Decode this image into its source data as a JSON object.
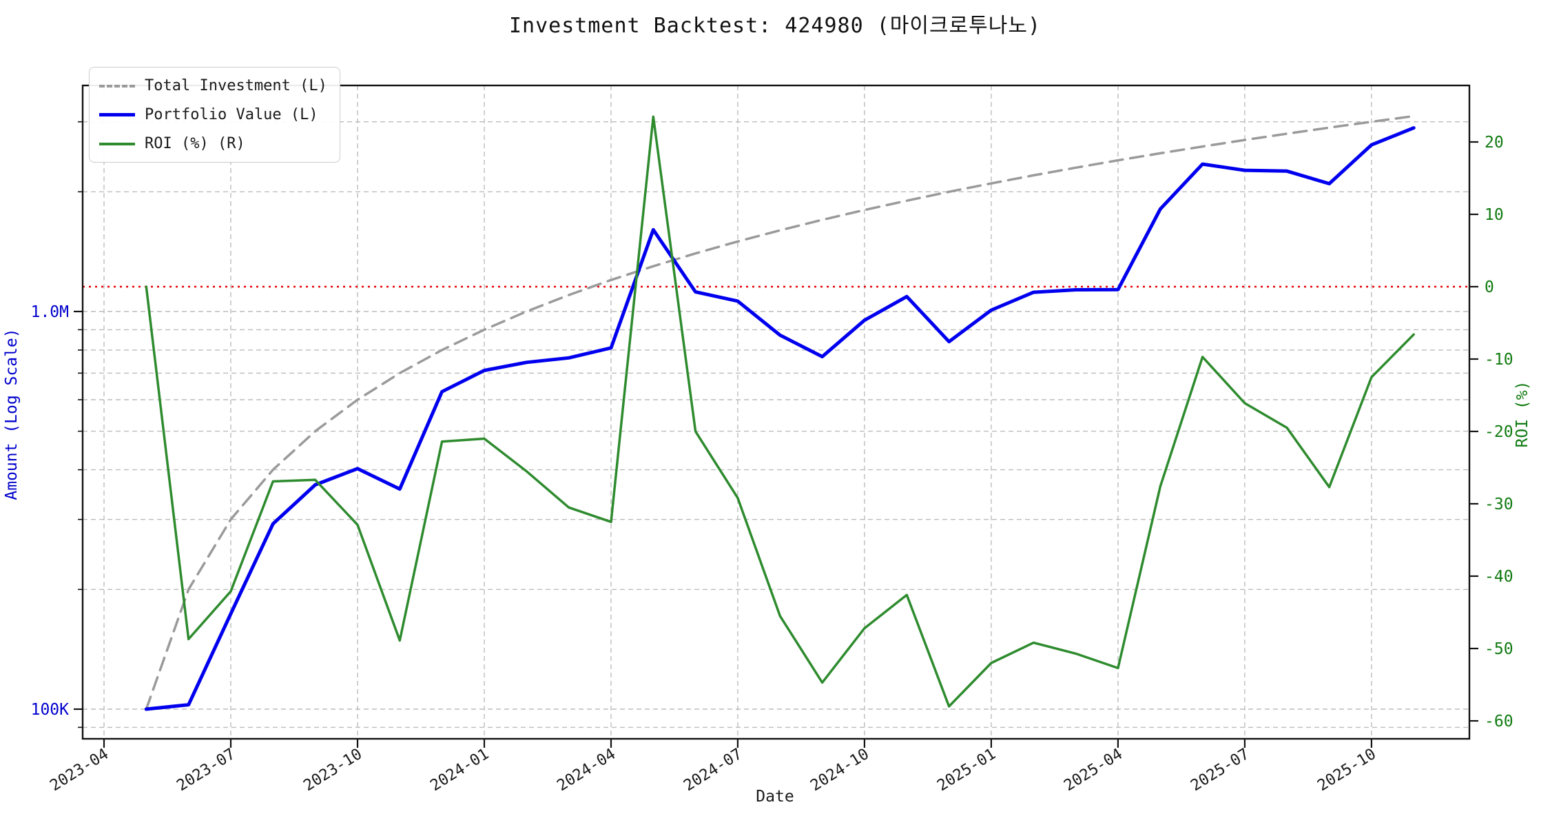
{
  "title": "Investment Backtest: 424980 (마이크로투나노)",
  "legend": [
    {
      "label": "Total Investment (L)",
      "color": "#9a9a9a",
      "style": "dashed"
    },
    {
      "label": "Portfolio Value (L)",
      "color": "#0000ee",
      "style": "solid"
    },
    {
      "label": "ROI (%) (R)",
      "color": "#2e8b2e",
      "style": "solid"
    }
  ],
  "axes": {
    "x_label": "Date",
    "left_label": "Amount (Log Scale)",
    "right_label": "ROI (%)",
    "x_ticks": [
      "2023-04",
      "2023-07",
      "2023-10",
      "2024-01",
      "2024-04",
      "2024-07",
      "2024-10",
      "2025-01",
      "2025-04",
      "2025-07",
      "2025-10"
    ],
    "left_ticks": [
      {
        "value": 100000,
        "label": "100K"
      },
      {
        "value": 1000000,
        "label": "1.0M"
      }
    ],
    "left_minor_grid": [
      90000,
      200000,
      300000,
      400000,
      500000,
      600000,
      700000,
      800000,
      900000,
      2000000,
      3000000
    ],
    "right_ticks": [
      20,
      10,
      0,
      -10,
      -20,
      -30,
      -40,
      -50,
      -60
    ],
    "left_color": "#0000cc",
    "right_color": "#107a10",
    "tick_color": "#1a1a1a"
  },
  "zero_line": {
    "value": 0,
    "color": "#e60000",
    "style": "dotted"
  },
  "chart_data": {
    "type": "line",
    "x": [
      "2023-05",
      "2023-06",
      "2023-07",
      "2023-08",
      "2023-09",
      "2023-10",
      "2023-11",
      "2023-12",
      "2024-01",
      "2024-02",
      "2024-03",
      "2024-04",
      "2024-05",
      "2024-06",
      "2024-07",
      "2024-08",
      "2024-09",
      "2024-10",
      "2024-11",
      "2024-12",
      "2025-01",
      "2025-02",
      "2025-03",
      "2025-04",
      "2025-05",
      "2025-06",
      "2025-07",
      "2025-08",
      "2025-09",
      "2025-10",
      "2025-11"
    ],
    "series": [
      {
        "id": "total-investment",
        "name": "Total Investment (L)",
        "axis": "left",
        "color": "#9a9a9a",
        "dashed": true,
        "width": 3.5,
        "values": [
          100000,
          200000,
          300000,
          400000,
          500000,
          600000,
          700000,
          800000,
          900000,
          1000000,
          1100000,
          1200000,
          1300000,
          1400000,
          1500000,
          1600000,
          1700000,
          1800000,
          1900000,
          2000000,
          2100000,
          2200000,
          2300000,
          2400000,
          2500000,
          2600000,
          2700000,
          2800000,
          2900000,
          3000000,
          3100000
        ]
      },
      {
        "id": "portfolio-value",
        "name": "Portfolio Value (L)",
        "axis": "left",
        "color": "#0000ee",
        "dashed": false,
        "width": 5,
        "values": [
          100000,
          102600,
          173700,
          292400,
          366500,
          402600,
          357700,
          628800,
          711000,
          745000,
          764500,
          810000,
          1605500,
          1120000,
          1062000,
          872000,
          770100,
          950400,
          1090600,
          840000,
          1008000,
          1117600,
          1133900,
          1135200,
          1810000,
          2347800,
          2265300,
          2254000,
          2096700,
          2625000,
          2895400
        ]
      },
      {
        "id": "roi",
        "name": "ROI (%) (R)",
        "axis": "right",
        "color": "#2e8b2e",
        "dashed": false,
        "width": 3.5,
        "values": [
          0.0,
          -48.7,
          -42.1,
          -26.9,
          -26.7,
          -32.9,
          -48.9,
          -21.4,
          -21.0,
          -25.5,
          -30.5,
          -32.5,
          23.5,
          -20.0,
          -29.2,
          -45.5,
          -54.7,
          -47.2,
          -42.6,
          -58.0,
          -52.0,
          -49.2,
          -50.7,
          -52.7,
          -27.6,
          -9.7,
          -16.1,
          -19.5,
          -27.7,
          -12.5,
          -6.6
        ]
      }
    ],
    "left_axis": {
      "scale": "log",
      "unit": "KRW",
      "labeled_ticks": [
        "100K",
        "1.0M"
      ]
    },
    "right_axis": {
      "scale": "linear",
      "range": [
        -60,
        20
      ],
      "unit": "%"
    },
    "grid": true,
    "legend_position": "upper-left"
  }
}
